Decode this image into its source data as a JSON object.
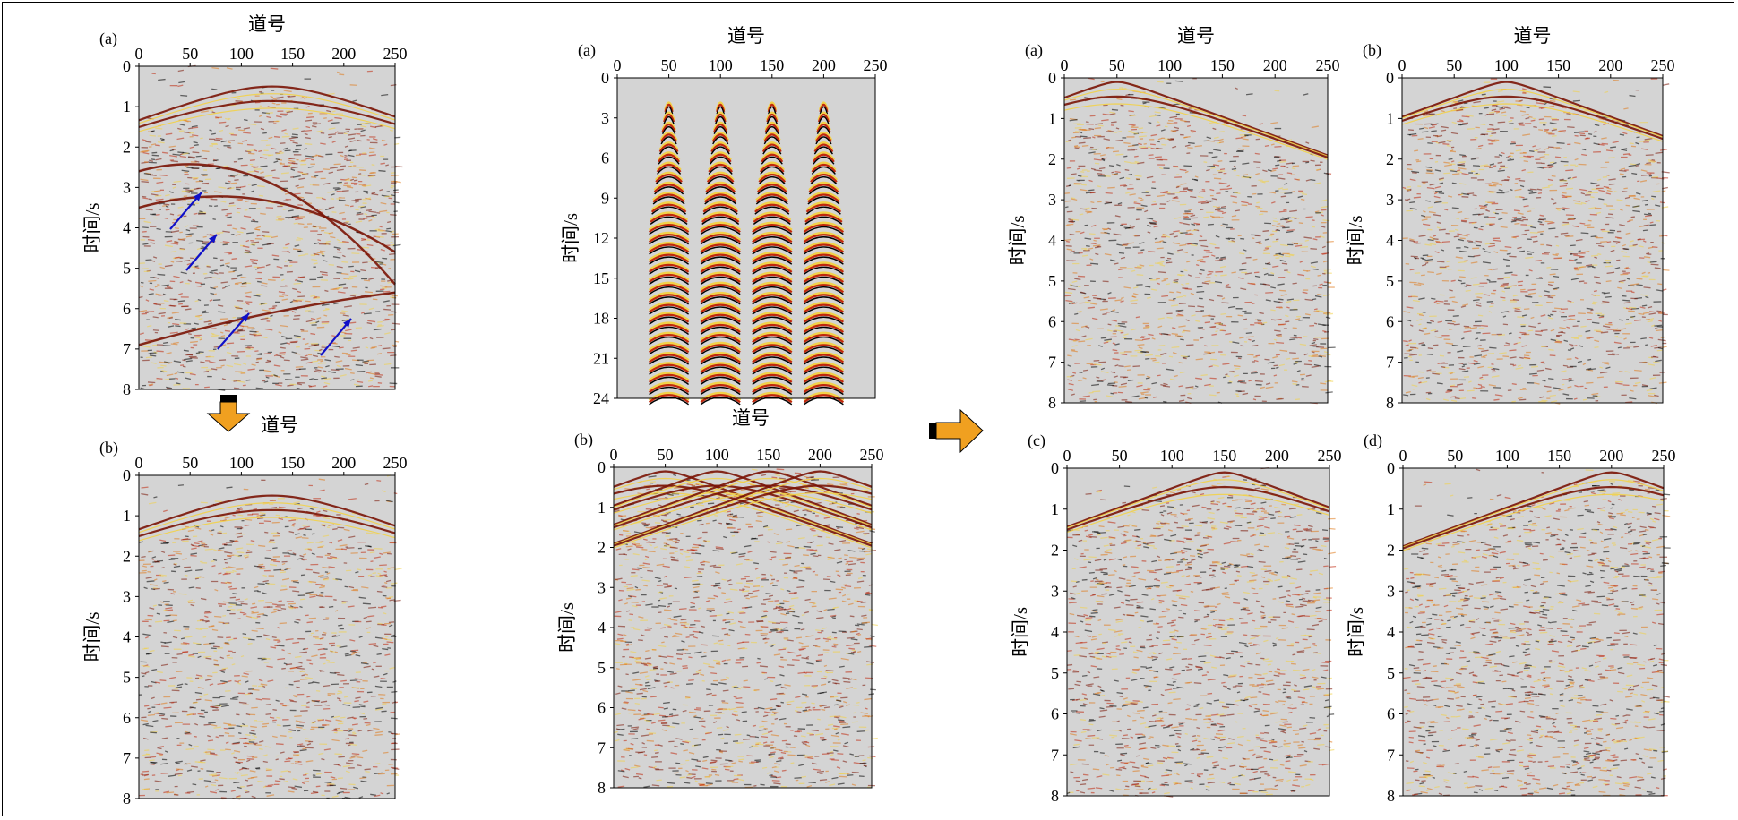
{
  "panels": [
    {
      "id": "L-a",
      "label": "(a)",
      "xlabel": "道号",
      "ylabel": "时间/s",
      "xticks": [
        "0",
        "50",
        "100",
        "150",
        "200",
        "250"
      ],
      "yticks": [
        "0",
        "1",
        "2",
        "3",
        "4",
        "5",
        "6",
        "7",
        "8"
      ],
      "xlim": [
        0,
        250
      ],
      "ylim": [
        0,
        8
      ],
      "apexes": [
        [
          130,
          0.5
        ]
      ],
      "deep": true,
      "arrows": true
    },
    {
      "id": "L-b",
      "label": "(b)",
      "xlabel": "道号",
      "ylabel": "时间/s",
      "xticks": [
        "0",
        "50",
        "100",
        "150",
        "200",
        "250"
      ],
      "yticks": [
        "0",
        "1",
        "2",
        "3",
        "4",
        "5",
        "6",
        "7",
        "8"
      ],
      "xlim": [
        0,
        250
      ],
      "ylim": [
        0,
        8
      ],
      "apexes": [
        [
          130,
          0.5
        ]
      ],
      "deep": false,
      "arrows": false
    },
    {
      "id": "M-a",
      "label": "(a)",
      "xlabel": "道号",
      "ylabel": "时间/s",
      "xticks": [
        "0",
        "50",
        "100",
        "150",
        "200",
        "250"
      ],
      "yticks": [
        "0",
        "3",
        "6",
        "9",
        "12",
        "15",
        "18",
        "21",
        "24"
      ],
      "xlim": [
        0,
        250
      ],
      "ylim": [
        0,
        24
      ],
      "wavelets": [
        50,
        100,
        150,
        200
      ]
    },
    {
      "id": "M-b",
      "label": "(b)",
      "xlabel": "道号",
      "ylabel": "时间/s",
      "xticks": [
        "0",
        "50",
        "100",
        "150",
        "200",
        "250"
      ],
      "yticks": [
        "0",
        "1",
        "2",
        "3",
        "4",
        "5",
        "6",
        "7",
        "8"
      ],
      "xlim": [
        0,
        250
      ],
      "ylim": [
        0,
        8
      ],
      "apexes": [
        [
          50,
          0.1
        ],
        [
          100,
          0.1
        ],
        [
          150,
          0.1
        ],
        [
          200,
          0.1
        ]
      ]
    },
    {
      "id": "R-a",
      "label": "(a)",
      "xlabel": "道号",
      "ylabel": "时间/s",
      "xticks": [
        "0",
        "50",
        "100",
        "150",
        "200",
        "250"
      ],
      "yticks": [
        "0",
        "1",
        "2",
        "3",
        "4",
        "5",
        "6",
        "7",
        "8"
      ],
      "xlim": [
        0,
        250
      ],
      "ylim": [
        0,
        8
      ],
      "apexes": [
        [
          50,
          0.1
        ]
      ]
    },
    {
      "id": "R-b",
      "label": "(b)",
      "xlabel": "道号",
      "ylabel": "时间/s",
      "xticks": [
        "0",
        "50",
        "100",
        "150",
        "200",
        "250"
      ],
      "yticks": [
        "0",
        "1",
        "2",
        "3",
        "4",
        "5",
        "6",
        "7",
        "8"
      ],
      "xlim": [
        0,
        250
      ],
      "ylim": [
        0,
        8
      ],
      "apexes": [
        [
          100,
          0.1
        ]
      ]
    },
    {
      "id": "R-c",
      "label": "(c)",
      "xlabel": "",
      "ylabel": "时间/s",
      "xticks": [
        "0",
        "50",
        "100",
        "150",
        "200",
        "250"
      ],
      "yticks": [
        "0",
        "1",
        "2",
        "3",
        "4",
        "5",
        "6",
        "7",
        "8"
      ],
      "xlim": [
        0,
        250
      ],
      "ylim": [
        0,
        8
      ],
      "apexes": [
        [
          150,
          0.1
        ]
      ]
    },
    {
      "id": "R-d",
      "label": "(d)",
      "xlabel": "",
      "ylabel": "时间/s",
      "xticks": [
        "0",
        "50",
        "100",
        "150",
        "200",
        "250"
      ],
      "yticks": [
        "0",
        "1",
        "2",
        "3",
        "4",
        "5",
        "6",
        "7",
        "8"
      ],
      "xlim": [
        0,
        250
      ],
      "ylim": [
        0,
        8
      ],
      "apexes": [
        [
          200,
          0.1
        ]
      ]
    }
  ],
  "colors": {
    "background": "#d4d4d4",
    "dark_red": "#7a1405",
    "red": "#c0280e",
    "orange": "#e07a1a",
    "yellow": "#f2d24a",
    "black": "#000000",
    "arrow_blue": "#1010c8",
    "big_arrow": "#f0a020"
  }
}
